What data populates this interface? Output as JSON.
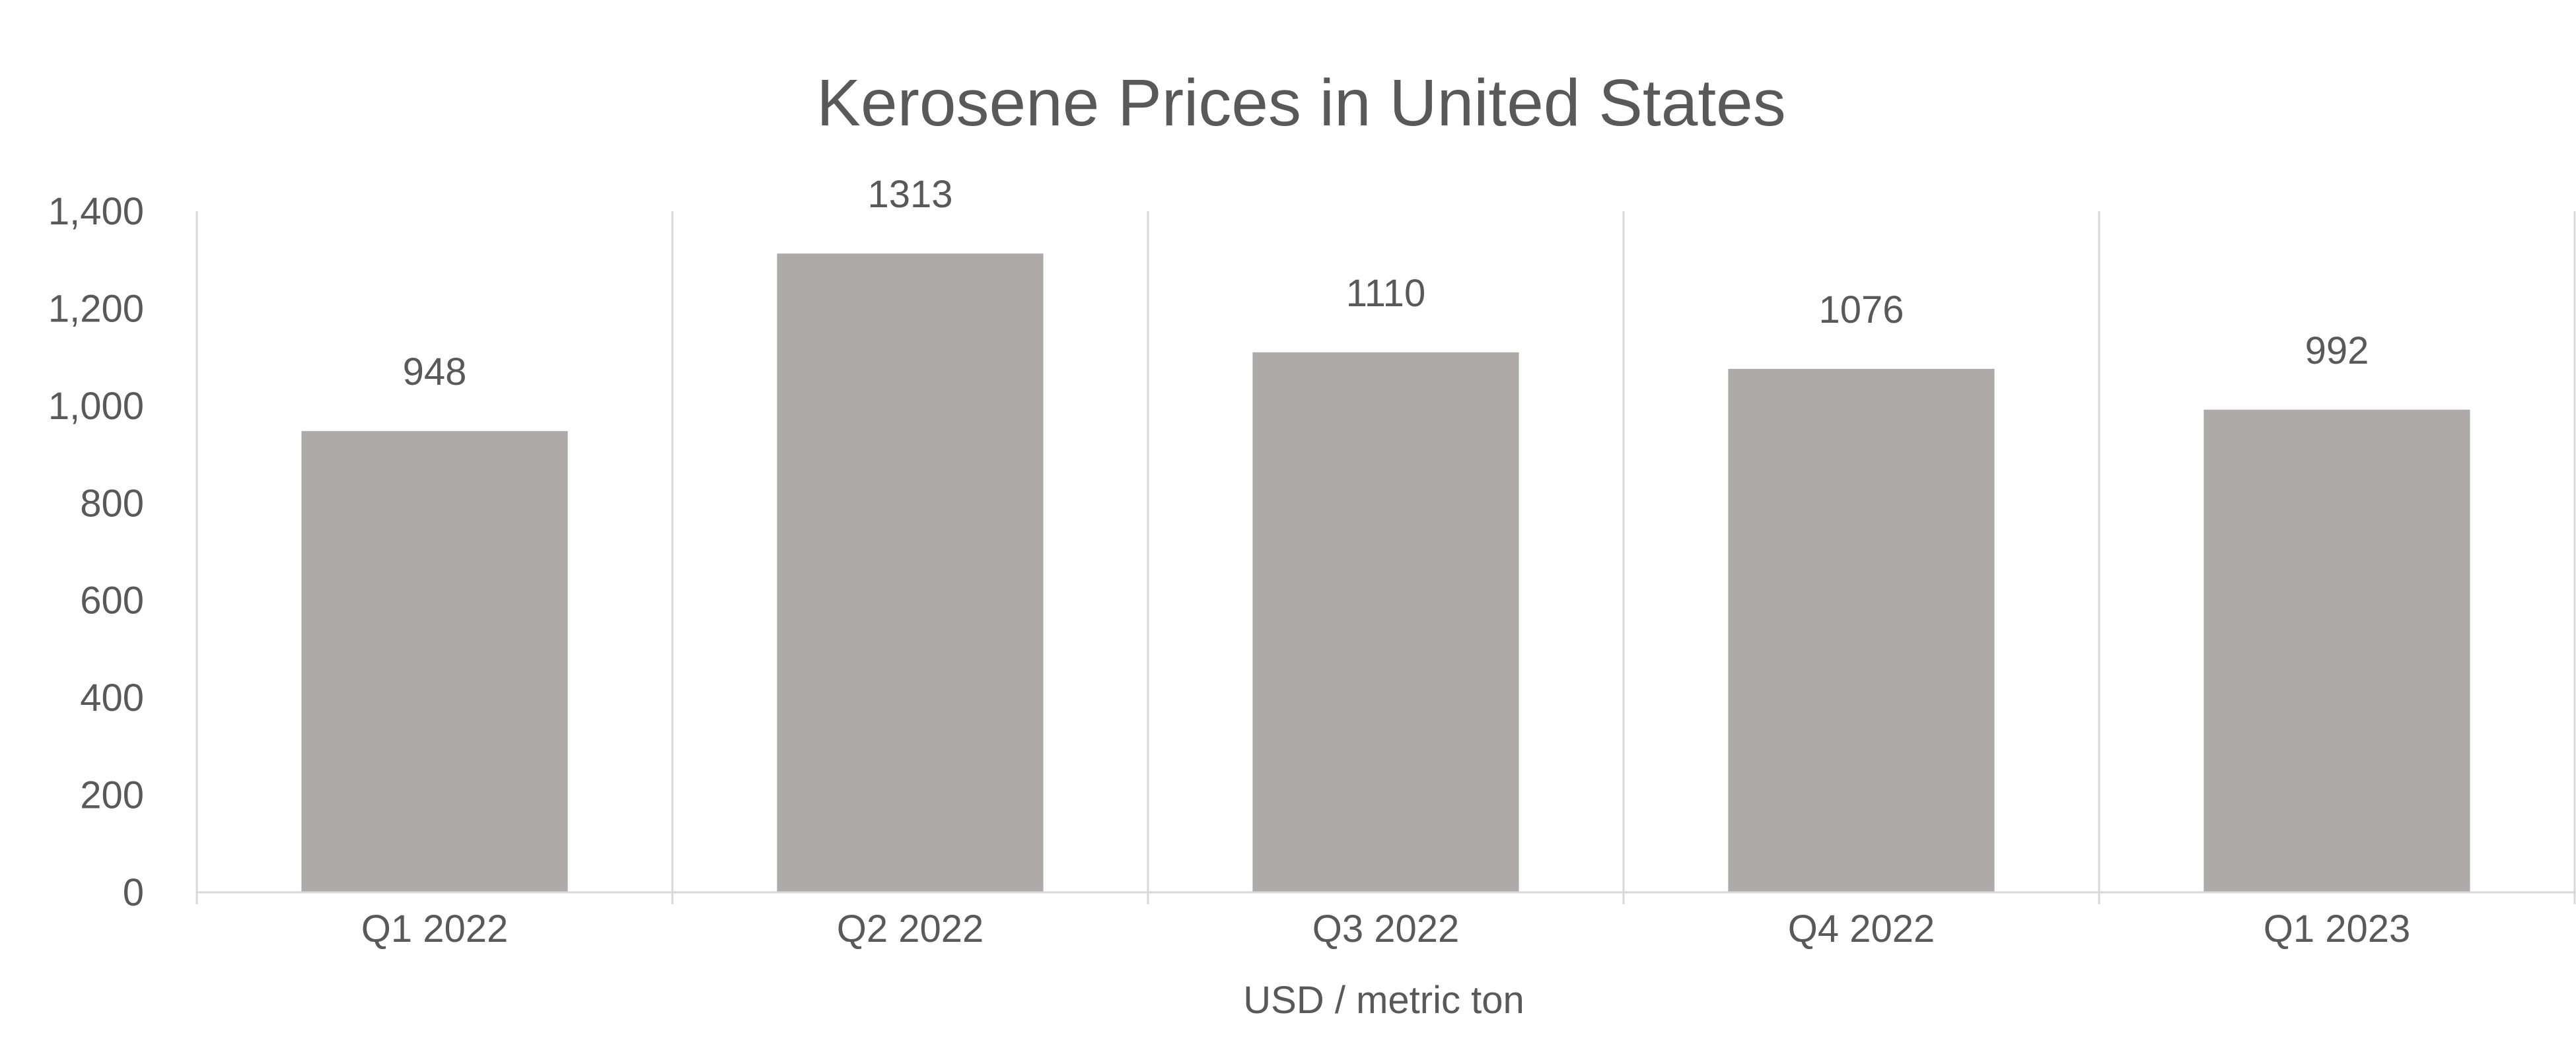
{
  "chart_data": {
    "type": "bar",
    "title": "Kerosene Prices in United States",
    "xlabel": "USD / metric ton",
    "ylabel": "",
    "categories": [
      "Q1 2022",
      "Q2 2022",
      "Q3 2022",
      "Q4 2022",
      "Q1 2023"
    ],
    "values": [
      948,
      1313,
      1110,
      1076,
      992
    ],
    "data_labels": [
      "948",
      "1313",
      "1110",
      "1076",
      "992"
    ],
    "ylim": [
      0,
      1400
    ],
    "y_ticks": [
      0,
      200,
      400,
      600,
      800,
      1000,
      1200,
      1400
    ],
    "y_tick_labels": [
      "0",
      "200",
      "400",
      "600",
      "800",
      "1,000",
      "1,200",
      "1,400"
    ],
    "grid": "vertical category separators",
    "legend": "none",
    "colors": {
      "bar": "#aeaaaa",
      "text": "#595959",
      "gridline": "#d9d9d9"
    }
  }
}
